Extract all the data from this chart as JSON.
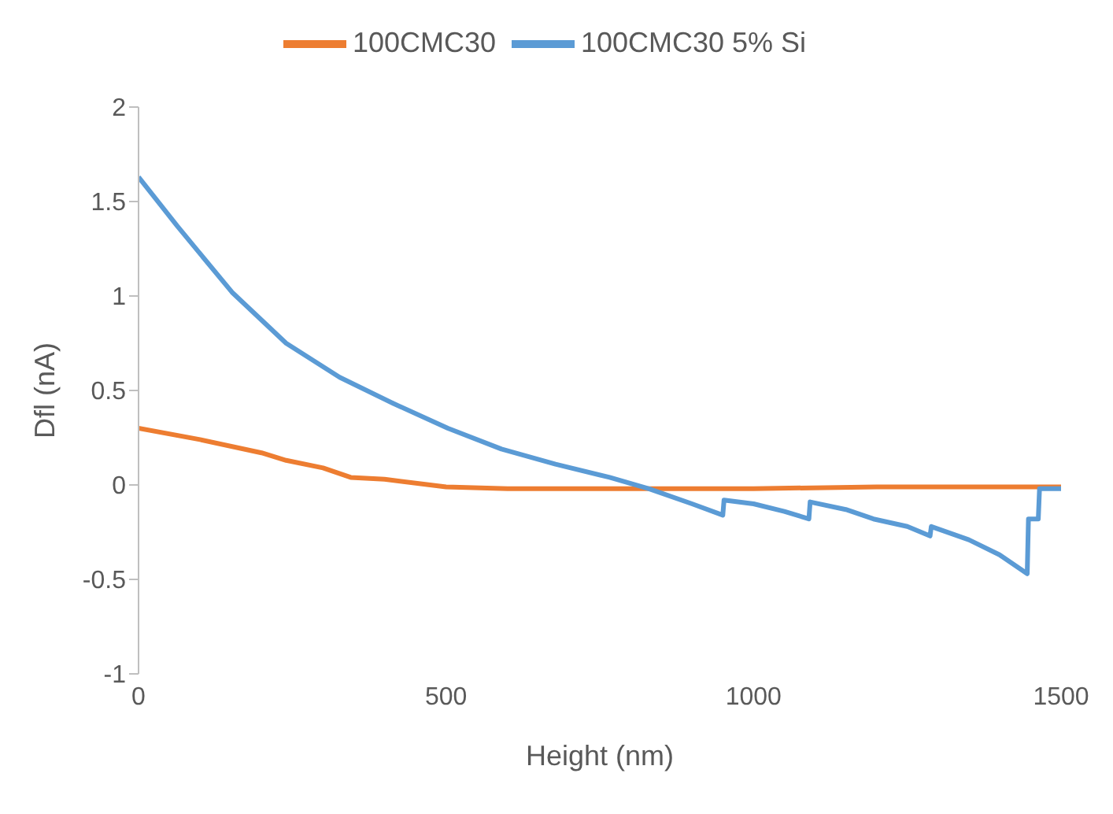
{
  "chart_data": {
    "type": "line",
    "xlabel": "Height (nm)",
    "ylabel": "Dfl (nA)",
    "xlim": [
      0,
      1500
    ],
    "xticks": [
      0,
      500,
      1000,
      1500
    ],
    "ylim": [
      -1,
      2
    ],
    "yticks": [
      -1,
      -0.5,
      0,
      0.5,
      1,
      1.5,
      2
    ],
    "grid": false,
    "legend": "top",
    "marker": "none",
    "line_style": "solid",
    "series": [
      {
        "name": "100CMC30",
        "color": "#ed7d31",
        "x": [
          0,
          100,
          200,
          240,
          300,
          345,
          400,
          500,
          600,
          800,
          1000,
          1200,
          1500
        ],
        "values": [
          0.3,
          0.24,
          0.17,
          0.13,
          0.09,
          0.04,
          0.03,
          -0.01,
          -0.02,
          -0.02,
          -0.02,
          -0.01,
          -0.01
        ]
      },
      {
        "name": "100CMC30 5% Si",
        "color": "#5b9bd5",
        "x": [
          0,
          63,
          152,
          240,
          327,
          415,
          503,
          590,
          678,
          766,
          830,
          900,
          950,
          952,
          1000,
          1050,
          1090,
          1092,
          1150,
          1195,
          1250,
          1287,
          1289,
          1350,
          1400,
          1445,
          1447,
          1463,
          1465,
          1500
        ],
        "values": [
          1.63,
          1.37,
          1.02,
          0.75,
          0.57,
          0.43,
          0.3,
          0.19,
          0.11,
          0.04,
          -0.02,
          -0.1,
          -0.16,
          -0.08,
          -0.1,
          -0.14,
          -0.18,
          -0.09,
          -0.13,
          -0.18,
          -0.22,
          -0.27,
          -0.22,
          -0.29,
          -0.37,
          -0.47,
          -0.18,
          -0.18,
          -0.02,
          -0.02
        ]
      }
    ]
  }
}
